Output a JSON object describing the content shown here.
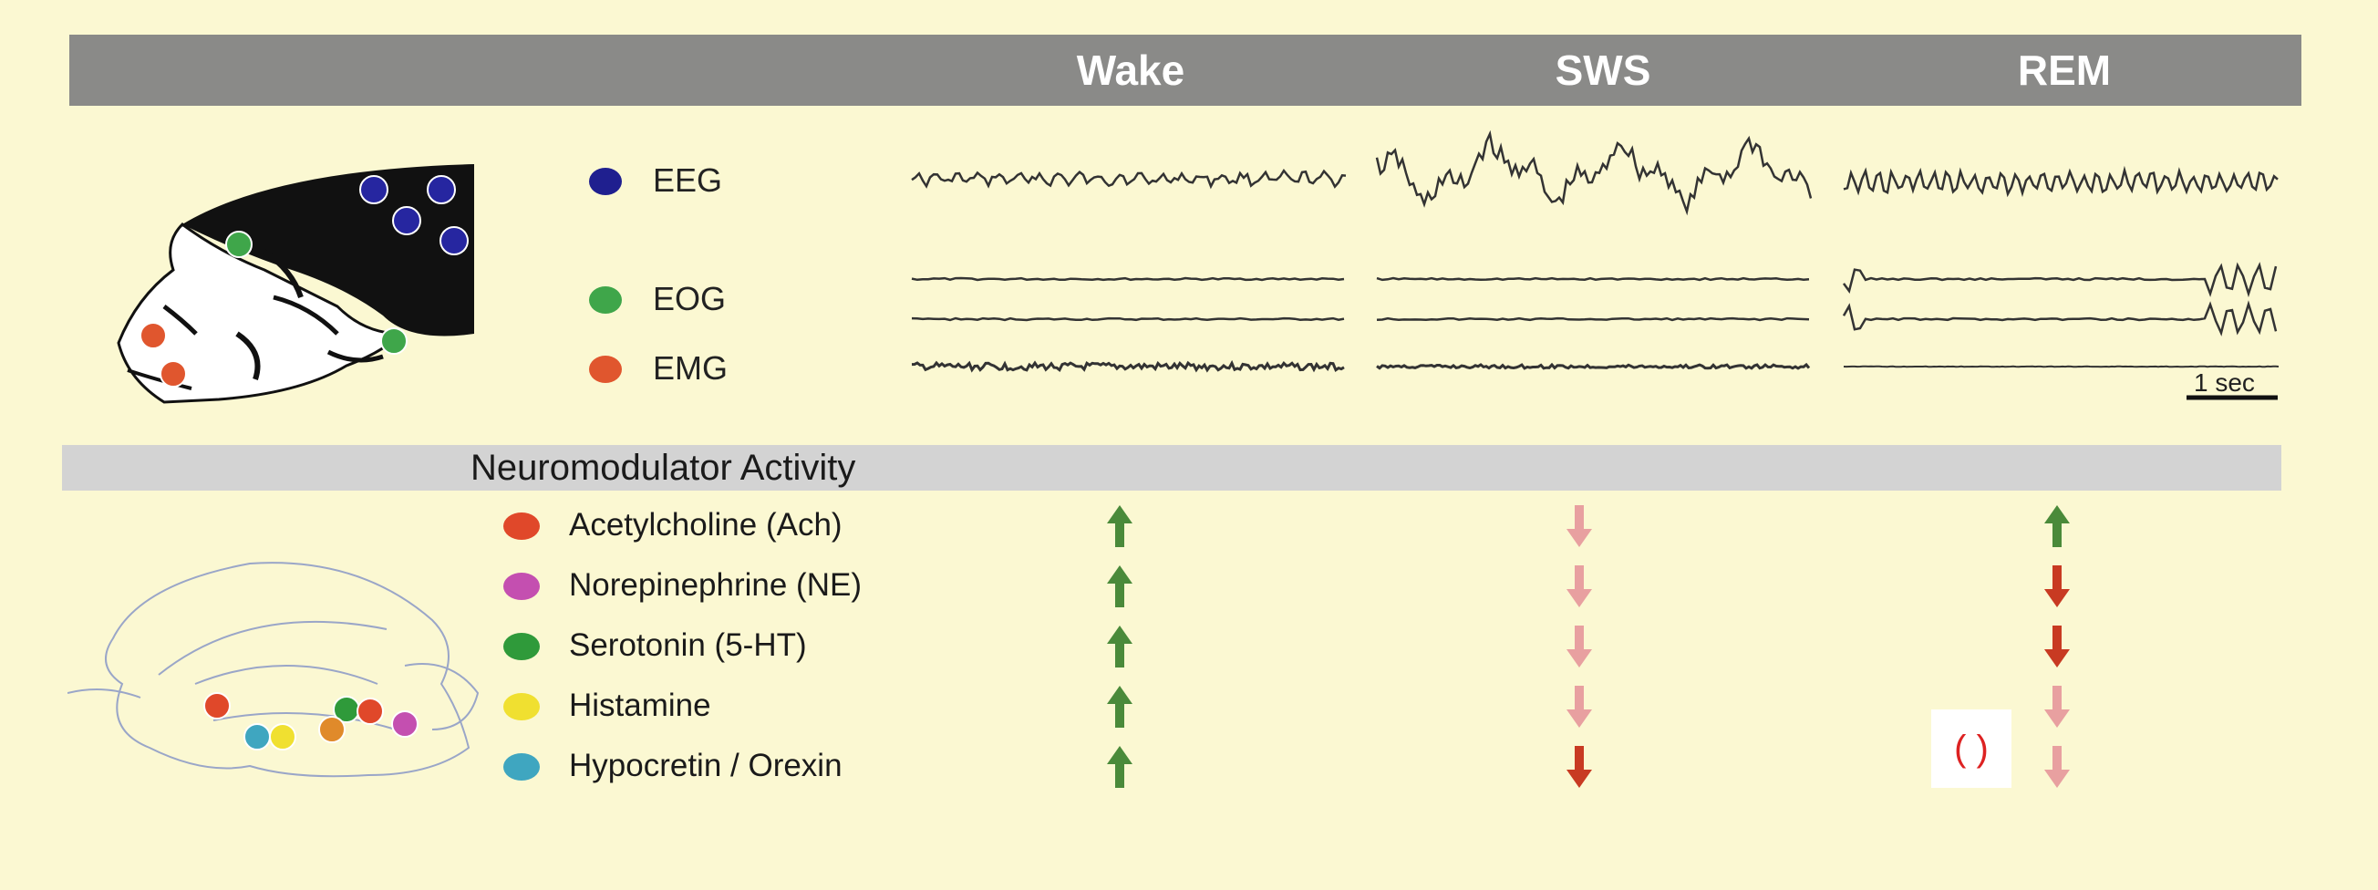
{
  "header": {
    "states": [
      "Wake",
      "SWS",
      "REM"
    ]
  },
  "signals": [
    {
      "label": "EEG",
      "color": "#1f1f8f"
    },
    {
      "label": "EOG",
      "color": "#3fa64a"
    },
    {
      "label": "EMG",
      "color": "#e0562e"
    }
  ],
  "scale_bar": {
    "label": "1 sec"
  },
  "neuromodulators": {
    "title": "Neuromodulator Activity",
    "items": [
      {
        "label": "Acetylcholine (Ach)",
        "color": "#e0482a",
        "wake": "up",
        "sws": "down-light",
        "rem": "up"
      },
      {
        "label": "Norepinephrine (NE)",
        "color": "#c44fb0",
        "wake": "up",
        "sws": "down-light",
        "rem": "down-dark"
      },
      {
        "label": "Serotonin (5-HT)",
        "color": "#2f9a3a",
        "wake": "up",
        "sws": "down-light",
        "rem": "down-dark"
      },
      {
        "label": "Histamine",
        "color": "#f0e030",
        "wake": "up",
        "sws": "down-light",
        "rem": "down-light"
      },
      {
        "label": "Hypocretin / Orexin",
        "color": "#3fa6c0",
        "wake": "up",
        "sws": "down-dark",
        "rem": "down-light"
      }
    ]
  },
  "annotation": {
    "text": "(   )"
  },
  "colors": {
    "arrow_up": "#4a8a3a",
    "arrow_down_light": "#e8a0a0",
    "arrow_down_dark": "#c83a22"
  }
}
